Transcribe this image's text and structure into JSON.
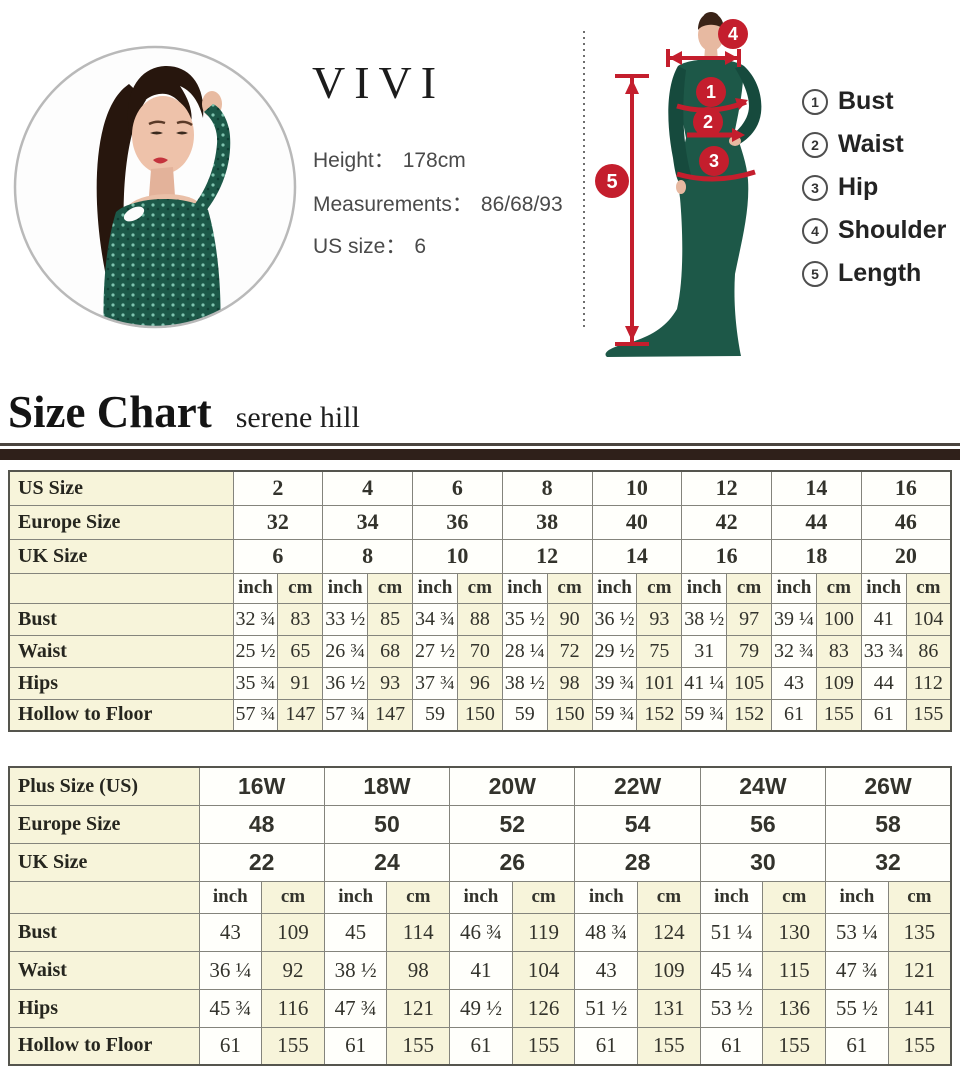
{
  "model_info": {
    "brand": "VIVI",
    "height_label": "Height：",
    "height_value": "178cm",
    "measurements_label": "Measurements：",
    "measurements_value": "86/68/93",
    "us_size_label": "US size：",
    "us_size_value": "6"
  },
  "diagram": {
    "markers": [
      "1",
      "2",
      "3",
      "4",
      "5"
    ],
    "legend": [
      {
        "num": "1",
        "label": "Bust"
      },
      {
        "num": "2",
        "label": "Waist"
      },
      {
        "num": "3",
        "label": "Hip"
      },
      {
        "num": "4",
        "label": "Shoulder"
      },
      {
        "num": "5",
        "label": "Length"
      }
    ]
  },
  "section_header": {
    "title": "Size Chart",
    "subtitle": "serene hill"
  },
  "colors": {
    "accent_red": "#c41e2d",
    "dress_green": "#1c5848",
    "cell_cream": "#f7f4da",
    "header_bar_brown": "#2f201a"
  },
  "table1": {
    "units": [
      "inch",
      "cm"
    ],
    "size_rows": [
      {
        "label": "US Size",
        "values": [
          "2",
          "4",
          "6",
          "8",
          "10",
          "12",
          "14",
          "16"
        ]
      },
      {
        "label": "Europe Size",
        "values": [
          "32",
          "34",
          "36",
          "38",
          "40",
          "42",
          "44",
          "46"
        ]
      },
      {
        "label": "UK Size",
        "values": [
          "6",
          "8",
          "10",
          "12",
          "14",
          "16",
          "18",
          "20"
        ]
      }
    ],
    "measure_rows": [
      {
        "label": "Bust",
        "values": [
          [
            "32 ¾",
            "83"
          ],
          [
            "33 ½",
            "85"
          ],
          [
            "34 ¾",
            "88"
          ],
          [
            "35 ½",
            "90"
          ],
          [
            "36 ½",
            "93"
          ],
          [
            "38 ½",
            "97"
          ],
          [
            "39 ¼",
            "100"
          ],
          [
            "41",
            "104"
          ]
        ]
      },
      {
        "label": "Waist",
        "values": [
          [
            "25 ½",
            "65"
          ],
          [
            "26 ¾",
            "68"
          ],
          [
            "27 ½",
            "70"
          ],
          [
            "28 ¼",
            "72"
          ],
          [
            "29 ½",
            "75"
          ],
          [
            "31",
            "79"
          ],
          [
            "32 ¾",
            "83"
          ],
          [
            "33 ¾",
            "86"
          ]
        ]
      },
      {
        "label": "Hips",
        "values": [
          [
            "35 ¾",
            "91"
          ],
          [
            "36 ½",
            "93"
          ],
          [
            "37 ¾",
            "96"
          ],
          [
            "38 ½",
            "98"
          ],
          [
            "39 ¾",
            "101"
          ],
          [
            "41 ¼",
            "105"
          ],
          [
            "43",
            "109"
          ],
          [
            "44",
            "112"
          ]
        ]
      },
      {
        "label": "Hollow to Floor",
        "values": [
          [
            "57 ¾",
            "147"
          ],
          [
            "57 ¾",
            "147"
          ],
          [
            "59",
            "150"
          ],
          [
            "59",
            "150"
          ],
          [
            "59 ¾",
            "152"
          ],
          [
            "59 ¾",
            "152"
          ],
          [
            "61",
            "155"
          ],
          [
            "61",
            "155"
          ]
        ]
      }
    ]
  },
  "table2": {
    "units": [
      "inch",
      "cm"
    ],
    "size_rows": [
      {
        "label": "Plus Size (US)",
        "values": [
          "16W",
          "18W",
          "20W",
          "22W",
          "24W",
          "26W"
        ]
      },
      {
        "label": "Europe Size",
        "values": [
          "48",
          "50",
          "52",
          "54",
          "56",
          "58"
        ]
      },
      {
        "label": "UK Size",
        "values": [
          "22",
          "24",
          "26",
          "28",
          "30",
          "32"
        ]
      }
    ],
    "measure_rows": [
      {
        "label": "Bust",
        "values": [
          [
            "43",
            "109"
          ],
          [
            "45",
            "114"
          ],
          [
            "46 ¾",
            "119"
          ],
          [
            "48 ¾",
            "124"
          ],
          [
            "51 ¼",
            "130"
          ],
          [
            "53 ¼",
            "135"
          ]
        ]
      },
      {
        "label": "Waist",
        "values": [
          [
            "36 ¼",
            "92"
          ],
          [
            "38 ½",
            "98"
          ],
          [
            "41",
            "104"
          ],
          [
            "43",
            "109"
          ],
          [
            "45 ¼",
            "115"
          ],
          [
            "47 ¾",
            "121"
          ]
        ]
      },
      {
        "label": "Hips",
        "values": [
          [
            "45 ¾",
            "116"
          ],
          [
            "47 ¾",
            "121"
          ],
          [
            "49 ½",
            "126"
          ],
          [
            "51 ½",
            "131"
          ],
          [
            "53 ½",
            "136"
          ],
          [
            "55 ½",
            "141"
          ]
        ]
      },
      {
        "label": "Hollow to Floor",
        "values": [
          [
            "61",
            "155"
          ],
          [
            "61",
            "155"
          ],
          [
            "61",
            "155"
          ],
          [
            "61",
            "155"
          ],
          [
            "61",
            "155"
          ],
          [
            "61",
            "155"
          ]
        ]
      }
    ]
  }
}
